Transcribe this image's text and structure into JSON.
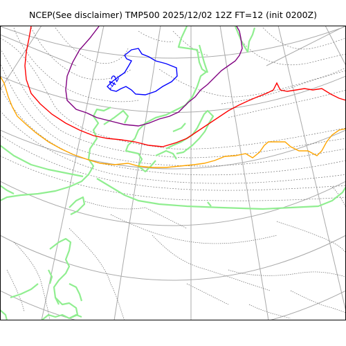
{
  "title": "NCEP(See disclaimer) TMP500 2025/12/02 12Z FT=12 (init 0200Z)",
  "colors": {
    "coastline": "#90ee90",
    "graticule": "#a9a9a9",
    "isotherm_minor": "#777777",
    "contour_blue": "#0000ff",
    "contour_purple": "#800080",
    "contour_red": "#ff0000",
    "contour_orange": "#ffa500"
  },
  "contour_labels": [
    {
      "text": "-42",
      "color": "#0000ff"
    }
  ]
}
